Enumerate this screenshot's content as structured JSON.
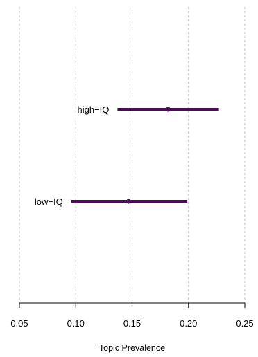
{
  "chart_data": {
    "type": "interval",
    "title": "",
    "xlabel": "Topic Prevalence",
    "ylabel": "",
    "xlim": [
      0.05,
      0.25
    ],
    "xticks": [
      0.05,
      0.1,
      0.15,
      0.2,
      0.25
    ],
    "xtick_labels": [
      "0.05",
      "0.10",
      "0.15",
      "0.20",
      "0.25"
    ],
    "grid": "vertical dashed at ticks",
    "series": [
      {
        "label": "high−IQ",
        "estimate": 0.182,
        "lower": 0.137,
        "upper": 0.227
      },
      {
        "label": "low−IQ",
        "estimate": 0.147,
        "lower": 0.096,
        "upper": 0.199
      }
    ],
    "colors": {
      "interval": "#4B0C55",
      "grid": "#BEBEBE",
      "axis": "#000000"
    }
  }
}
